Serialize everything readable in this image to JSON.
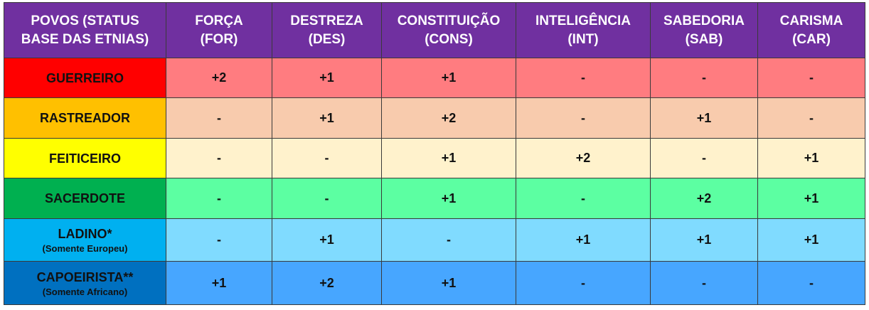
{
  "header": [
    {
      "line1": "POVOS (STATUS",
      "line2": "BASE DAS ETNIAS)"
    },
    {
      "line1": "FORÇA",
      "line2": "(FOR)"
    },
    {
      "line1": "DESTREZA",
      "line2": "(DES)"
    },
    {
      "line1": "CONSTITUIÇÃO",
      "line2": "(CONS)"
    },
    {
      "line1": "INTELIGÊNCIA",
      "line2": "(INT)"
    },
    {
      "line1": "SABEDORIA",
      "line2": "(SAB)"
    },
    {
      "line1": "CARISMA",
      "line2": "(CAR)"
    }
  ],
  "rows": [
    {
      "name": "GUERREIRO",
      "note": "",
      "name_color": "#ff0000",
      "cell_color": "#ff7c80",
      "values": [
        "+2",
        "+1",
        "+1",
        "-",
        "-",
        "-"
      ]
    },
    {
      "name": "RASTREADOR",
      "note": "",
      "name_color": "#ffc000",
      "cell_color": "#f8cbad",
      "values": [
        "-",
        "+1",
        "+2",
        "-",
        "+1",
        "-"
      ]
    },
    {
      "name": "FEITICEIRO",
      "note": "",
      "name_color": "#ffff00",
      "cell_color": "#fff2cc",
      "values": [
        "-",
        "-",
        "+1",
        "+2",
        "-",
        "+1"
      ]
    },
    {
      "name": "SACERDOTE",
      "note": "",
      "name_color": "#00b050",
      "cell_color": "#5cffa2",
      "values": [
        "-",
        "-",
        "+1",
        "-",
        "+2",
        "+1"
      ]
    },
    {
      "name": "LADINO*",
      "note": "(Somente Europeu)",
      "name_color": "#00b0f0",
      "cell_color": "#80dbff",
      "values": [
        "-",
        "+1",
        "-",
        "+1",
        "+1",
        "+1"
      ]
    },
    {
      "name": "CAPOEIRISTA**",
      "note": "(Somente Africano)",
      "name_color": "#0070c0",
      "cell_color": "#47a6ff",
      "values": [
        "+1",
        "+2",
        "+1",
        "-",
        "-",
        "-"
      ]
    }
  ],
  "colors": {
    "header_background": "#7030a0",
    "header_text": "#ffffff",
    "border": "#3a3a3a"
  }
}
